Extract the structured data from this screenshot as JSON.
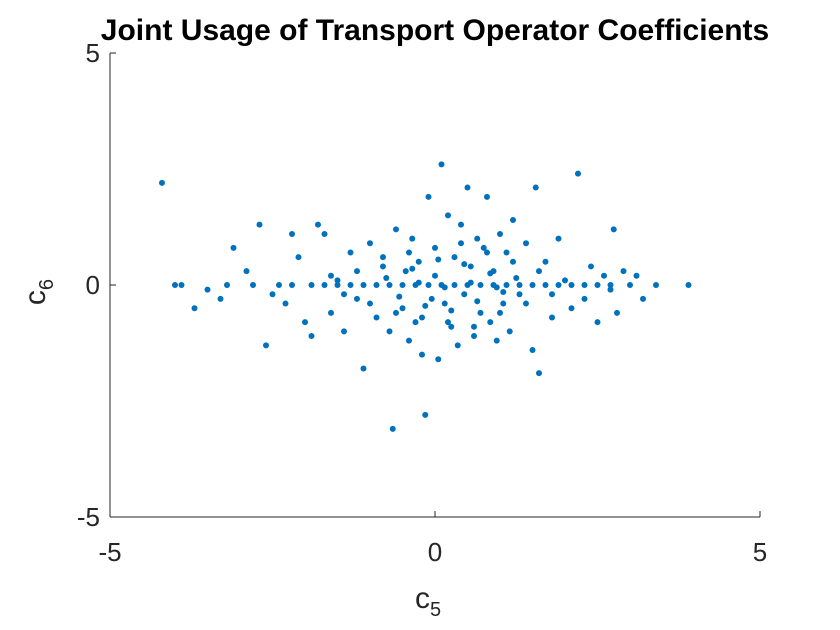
{
  "chart_data": {
    "type": "scatter",
    "title": "Joint Usage of Transport Operator Coefficients",
    "xlabel": {
      "base": "c",
      "sub": "5"
    },
    "ylabel": {
      "base": "c",
      "sub": "6"
    },
    "xlim": [
      -5,
      5
    ],
    "ylim": [
      -5,
      5
    ],
    "xticks": [
      -5,
      0,
      5
    ],
    "yticks": [
      -5,
      0,
      5
    ],
    "xtick_labels": [
      "-5",
      "0",
      "5"
    ],
    "ytick_labels": [
      "-5",
      "0",
      "5"
    ],
    "grid": false,
    "marker_color": "#0072BD",
    "series": [
      {
        "points": [
          [
            -4.2,
            2.2
          ],
          [
            -3.9,
            0.0
          ],
          [
            -3.7,
            -0.5
          ],
          [
            -3.5,
            -0.1
          ],
          [
            -3.3,
            -0.3
          ],
          [
            -3.1,
            0.8
          ],
          [
            -2.9,
            0.3
          ],
          [
            -2.7,
            1.3
          ],
          [
            -2.6,
            -1.3
          ],
          [
            -2.5,
            -0.2
          ],
          [
            -2.3,
            -0.4
          ],
          [
            -2.2,
            1.1
          ],
          [
            -2.1,
            0.6
          ],
          [
            -2.0,
            -0.8
          ],
          [
            -1.9,
            -1.1
          ],
          [
            -1.8,
            1.3
          ],
          [
            -1.7,
            1.1
          ],
          [
            -1.6,
            -0.6
          ],
          [
            -1.5,
            0.1
          ],
          [
            -1.4,
            -1.0
          ],
          [
            -1.3,
            0.7
          ],
          [
            -1.2,
            -0.3
          ],
          [
            -1.1,
            -1.8
          ],
          [
            -1.0,
            0.9
          ],
          [
            -0.9,
            -0.7
          ],
          [
            -0.8,
            0.4
          ],
          [
            -0.7,
            -1.0
          ],
          [
            -0.65,
            -3.1
          ],
          [
            -0.6,
            1.2
          ],
          [
            -0.5,
            -0.5
          ],
          [
            -0.45,
            0.3
          ],
          [
            -0.4,
            -1.2
          ],
          [
            -0.35,
            1.0
          ],
          [
            -0.3,
            -0.8
          ],
          [
            -0.25,
            0.5
          ],
          [
            -0.2,
            -1.5
          ],
          [
            -0.15,
            -2.8
          ],
          [
            -0.1,
            1.9
          ],
          [
            -0.05,
            -0.3
          ],
          [
            0.0,
            0.2
          ],
          [
            0.05,
            -1.6
          ],
          [
            0.1,
            2.6
          ],
          [
            0.15,
            -0.4
          ],
          [
            0.2,
            1.5
          ],
          [
            0.25,
            -0.9
          ],
          [
            0.3,
            0.6
          ],
          [
            0.35,
            -1.3
          ],
          [
            0.4,
            1.3
          ],
          [
            0.45,
            -0.2
          ],
          [
            0.5,
            2.1
          ],
          [
            0.55,
            0.4
          ],
          [
            0.6,
            -1.1
          ],
          [
            0.65,
            1.0
          ],
          [
            0.7,
            -0.6
          ],
          [
            0.75,
            0.8
          ],
          [
            0.8,
            1.9
          ],
          [
            0.85,
            -0.8
          ],
          [
            0.9,
            0.3
          ],
          [
            0.95,
            -1.2
          ],
          [
            1.0,
            1.1
          ],
          [
            1.05,
            -0.4
          ],
          [
            1.1,
            0.7
          ],
          [
            1.15,
            -1.0
          ],
          [
            1.2,
            1.4
          ],
          [
            1.3,
            -0.2
          ],
          [
            1.4,
            0.9
          ],
          [
            1.5,
            -1.4
          ],
          [
            1.55,
            2.1
          ],
          [
            1.6,
            -1.9
          ],
          [
            1.7,
            0.5
          ],
          [
            1.8,
            -0.7
          ],
          [
            1.9,
            1.0
          ],
          [
            2.0,
            0.1
          ],
          [
            2.1,
            -0.5
          ],
          [
            2.2,
            2.4
          ],
          [
            2.3,
            -0.3
          ],
          [
            2.4,
            0.4
          ],
          [
            2.5,
            -0.8
          ],
          [
            2.6,
            0.2
          ],
          [
            2.7,
            -0.1
          ],
          [
            2.75,
            1.2
          ],
          [
            2.8,
            -0.6
          ],
          [
            2.9,
            0.3
          ],
          [
            3.0,
            0.0
          ],
          [
            3.1,
            0.2
          ],
          [
            3.2,
            -0.3
          ],
          [
            3.4,
            0.0
          ],
          [
            3.9,
            0.0
          ],
          [
            -4.0,
            0.0
          ],
          [
            -3.2,
            0.0
          ],
          [
            -2.8,
            0.0
          ],
          [
            -2.4,
            0.0
          ],
          [
            -2.2,
            0.0
          ],
          [
            -1.9,
            0.0
          ],
          [
            -1.7,
            0.0
          ],
          [
            -1.5,
            0.0
          ],
          [
            -1.3,
            0.0
          ],
          [
            -1.1,
            0.0
          ],
          [
            -0.9,
            0.0
          ],
          [
            -0.7,
            0.0
          ],
          [
            -0.5,
            0.0
          ],
          [
            -0.3,
            0.0
          ],
          [
            -0.1,
            0.0
          ],
          [
            0.1,
            0.0
          ],
          [
            0.3,
            0.0
          ],
          [
            0.5,
            0.0
          ],
          [
            0.7,
            0.0
          ],
          [
            0.9,
            0.0
          ],
          [
            1.1,
            0.0
          ],
          [
            1.3,
            0.0
          ],
          [
            1.5,
            0.0
          ],
          [
            1.7,
            0.0
          ],
          [
            1.9,
            0.0
          ],
          [
            2.1,
            0.0
          ],
          [
            2.3,
            0.0
          ],
          [
            2.5,
            0.0
          ],
          [
            2.7,
            0.0
          ],
          [
            -1.6,
            0.2
          ],
          [
            -1.4,
            -0.2
          ],
          [
            -1.2,
            0.3
          ],
          [
            -1.0,
            -0.4
          ],
          [
            -0.8,
            0.6
          ],
          [
            -0.6,
            -0.6
          ],
          [
            -0.4,
            0.7
          ],
          [
            -0.2,
            -0.7
          ],
          [
            0.0,
            0.8
          ],
          [
            0.2,
            -0.8
          ],
          [
            0.4,
            0.9
          ],
          [
            0.6,
            -0.9
          ],
          [
            0.8,
            0.7
          ],
          [
            1.0,
            -0.6
          ],
          [
            1.2,
            0.5
          ],
          [
            1.4,
            -0.4
          ],
          [
            1.6,
            0.3
          ],
          [
            1.8,
            -0.2
          ],
          [
            -0.75,
            0.15
          ],
          [
            -0.55,
            -0.25
          ],
          [
            -0.35,
            0.35
          ],
          [
            -0.15,
            -0.45
          ],
          [
            0.05,
            0.55
          ],
          [
            0.25,
            -0.55
          ],
          [
            0.45,
            0.45
          ],
          [
            0.65,
            -0.35
          ],
          [
            0.85,
            0.25
          ],
          [
            1.05,
            -0.15
          ],
          [
            1.25,
            0.15
          ],
          [
            -0.25,
            0.05
          ],
          [
            0.15,
            -0.05
          ],
          [
            0.55,
            0.05
          ],
          [
            0.95,
            -0.05
          ]
        ]
      }
    ]
  }
}
